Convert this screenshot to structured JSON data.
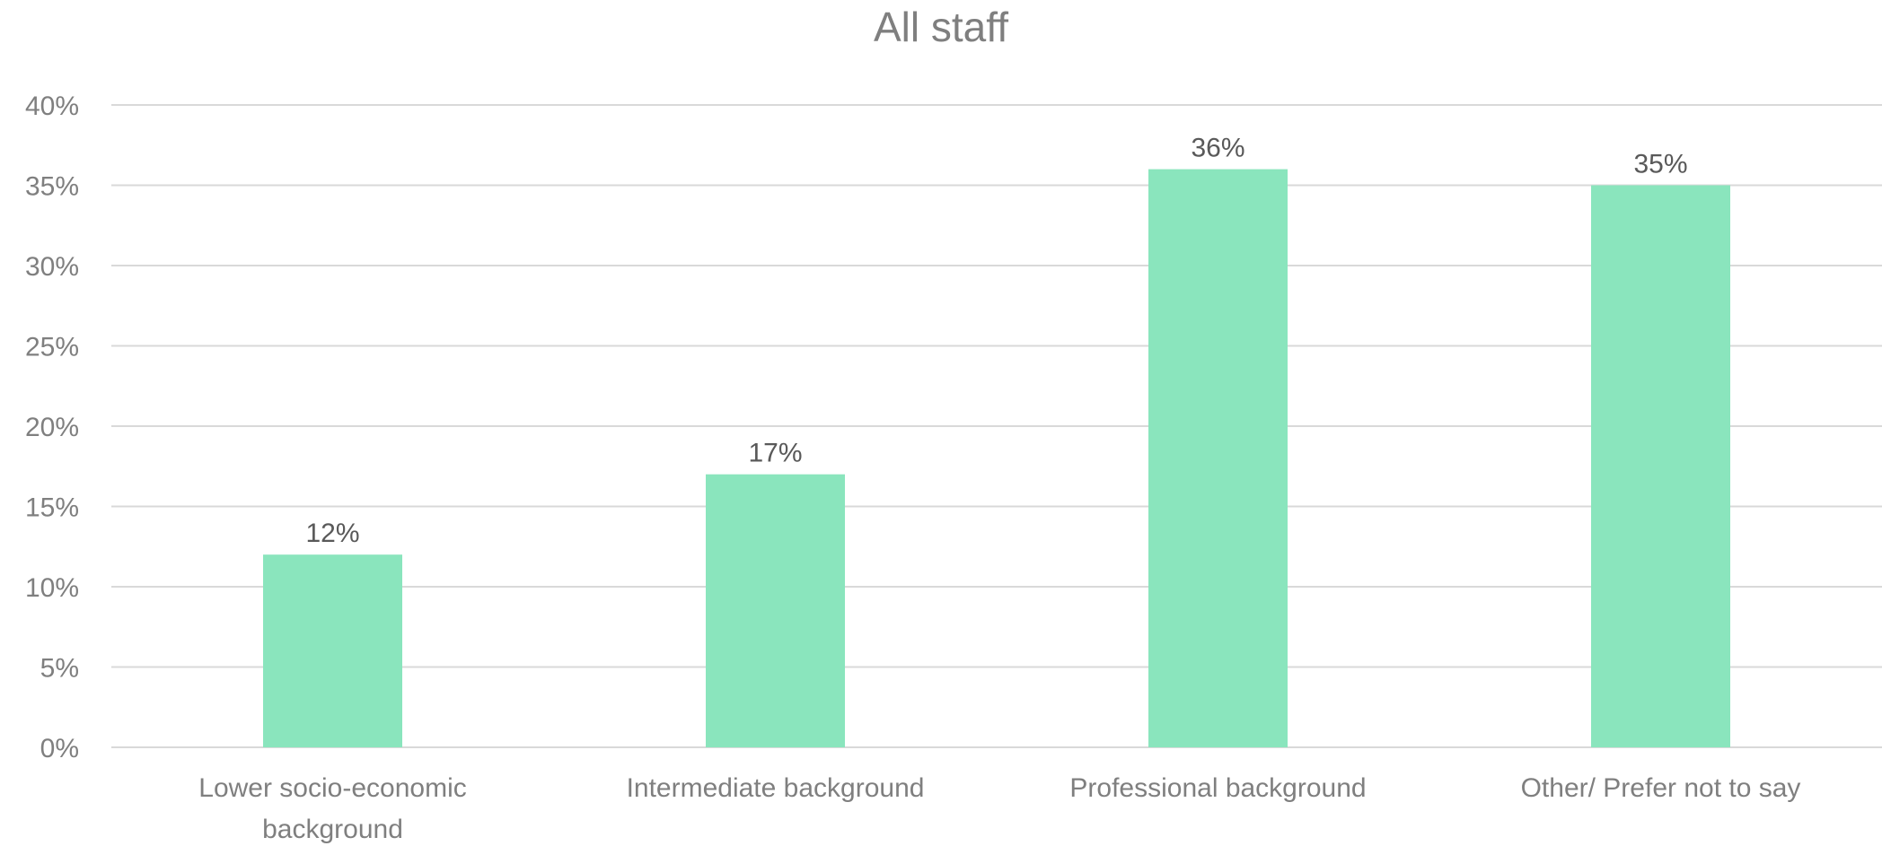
{
  "chart_data": {
    "type": "bar",
    "title": "All staff",
    "categories": [
      [
        "Lower socio-economic",
        "background"
      ],
      [
        "Intermediate background"
      ],
      [
        "Professional background"
      ],
      [
        "Other/ Prefer not to say"
      ]
    ],
    "values": [
      12,
      17,
      36,
      35
    ],
    "data_labels": [
      "12%",
      "17%",
      "36%",
      "35%"
    ],
    "ylim": [
      0,
      40
    ],
    "yticks": [
      0,
      5,
      10,
      15,
      20,
      25,
      30,
      35,
      40
    ],
    "ytick_labels": [
      "0%",
      "5%",
      "10%",
      "15%",
      "20%",
      "25%",
      "30%",
      "35%",
      "40%"
    ],
    "grid": true,
    "legend": "none",
    "colors": {
      "bar": "#8ae5bd",
      "grid": "#d9d9d9",
      "text": "#7f7f7f",
      "label": "#595959"
    }
  }
}
